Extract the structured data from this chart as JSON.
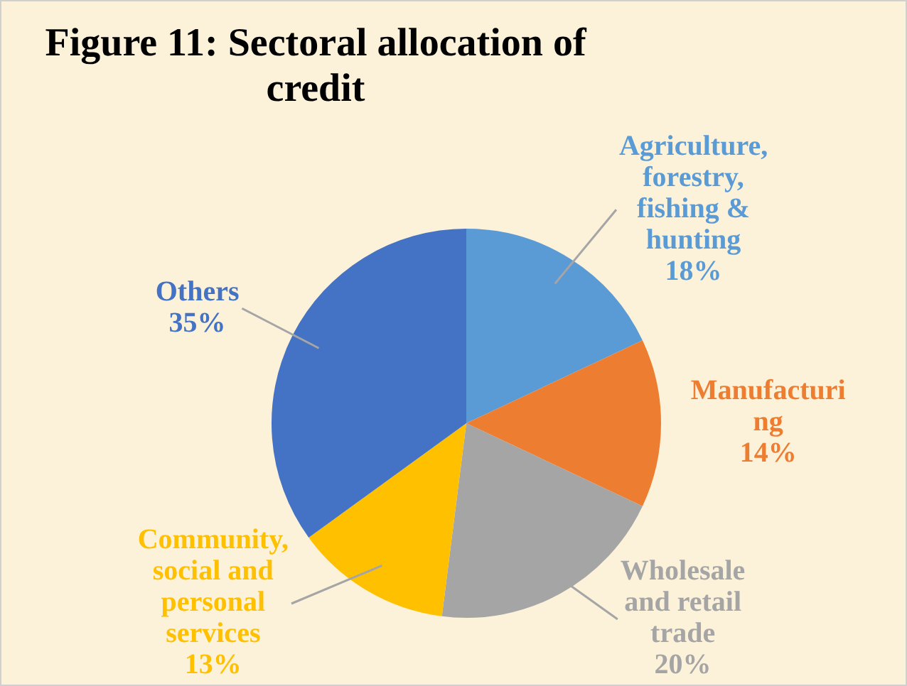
{
  "chart_data": {
    "type": "pie",
    "title": "Figure 11: Sectoral allocation of credit",
    "categories": [
      "Agriculture, forestry, fishing & hunting",
      "Manufacturing",
      "Wholesale and retail trade",
      "Community, social and personal services",
      "Others"
    ],
    "values": [
      18,
      14,
      20,
      13,
      35
    ],
    "value_labels": [
      "18%",
      "14%",
      "20%",
      "13%",
      "35%"
    ],
    "colors": [
      "#5b9bd5",
      "#ed7d31",
      "#a5a5a5",
      "#ffc000",
      "#4472c4"
    ],
    "legend": false
  }
}
